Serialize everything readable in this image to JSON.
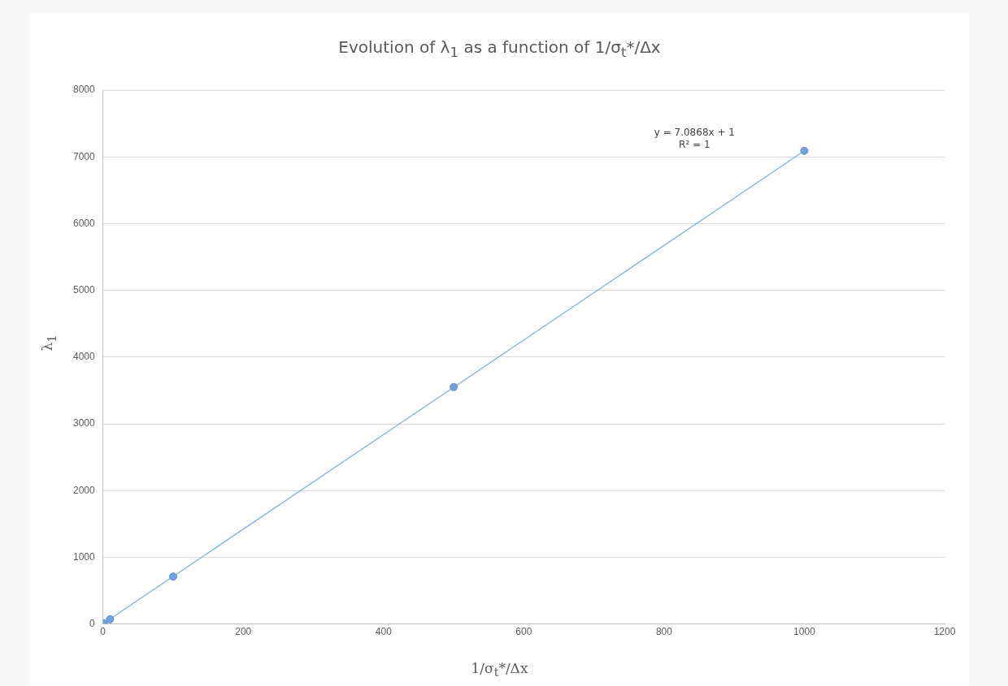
{
  "chart_data": {
    "type": "scatter",
    "title": "Evolution of λ$_{1}$ as a function of 1/σ$_{t}$*/Δx",
    "xlabel": "1/σ$_{t}$*/Δx",
    "ylabel": "λ$_{1}$",
    "series": [
      {
        "color": "#6fa3dc",
        "x": [
          1,
          10,
          100,
          500,
          1000
        ],
        "values": [
          10,
          70,
          710,
          3550,
          7090
        ]
      },
      {
        "type": "line",
        "marker": "none",
        "color": "#7fb2e0",
        "x": [
          1,
          1000
        ],
        "values": [
          10,
          7090
        ]
      }
    ],
    "annotations": [
      "y = 7.0868x + 1",
      "R² = 1"
    ],
    "xlim": [
      0,
      1200
    ],
    "xticks": [
      0,
      200,
      400,
      600,
      800,
      1000,
      1200
    ],
    "ylim": [
      0,
      8000
    ],
    "yticks": [
      0,
      1000,
      2000,
      3000,
      4000,
      5000,
      6000,
      7000,
      8000
    ],
    "grid": "y",
    "legend": false,
    "marker": "circle"
  }
}
